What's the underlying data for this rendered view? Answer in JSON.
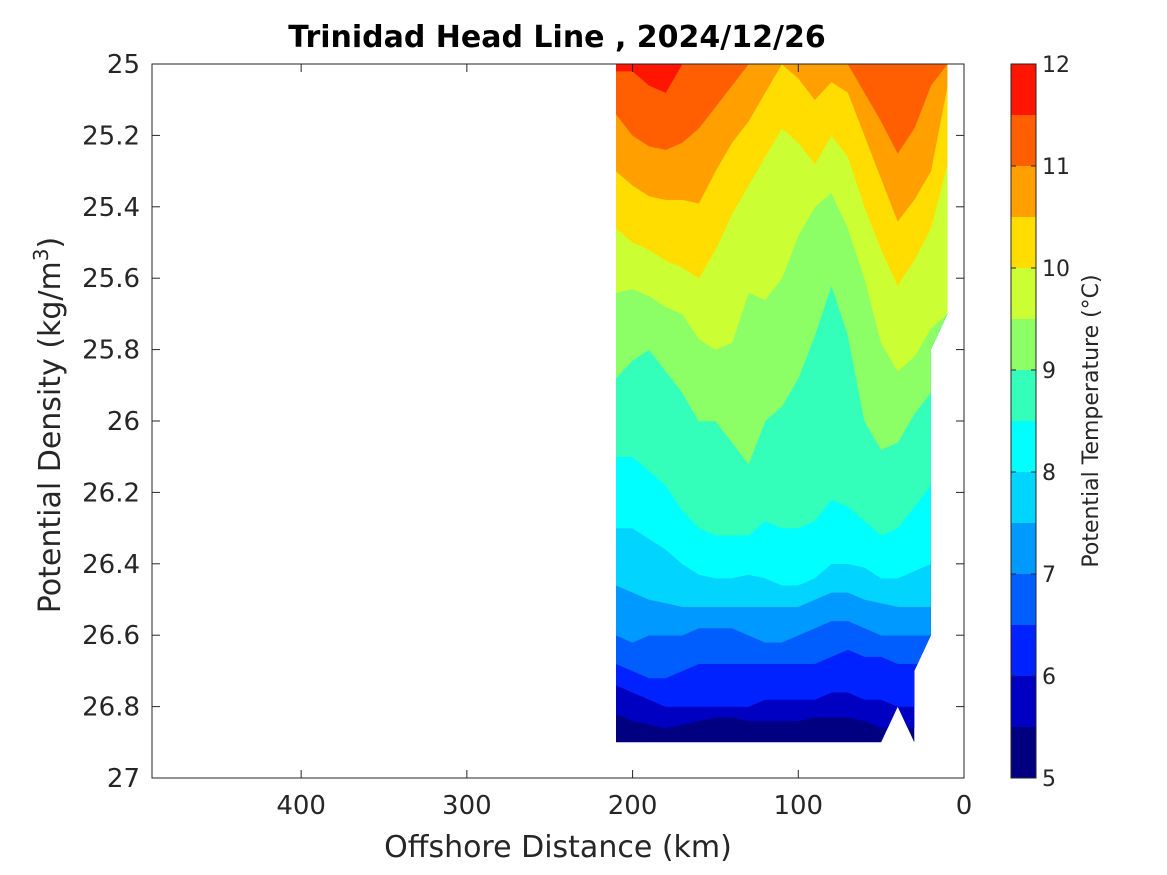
{
  "chart_data": {
    "type": "heatmap",
    "subtype": "filled-contour",
    "title": "Trinidad Head Line , 2024/12/26",
    "xlabel": "Offshore Distance (km)",
    "ylabel_main": "Potential Density (kg/m",
    "ylabel_sup": "3",
    "ylabel_close": ")",
    "colorbar_label": "Potential Temperature (°C)",
    "x_reversed": true,
    "y_reversed": true,
    "xlim": [
      0,
      490
    ],
    "ylim": [
      25,
      27
    ],
    "xticks": [
      400,
      300,
      200,
      100,
      0
    ],
    "xtick_labels": [
      "400",
      "300",
      "200",
      "100",
      "0"
    ],
    "yticks": [
      25,
      25.2,
      25.4,
      25.6,
      25.8,
      26,
      26.2,
      26.4,
      26.6,
      26.8,
      27
    ],
    "ytick_labels": [
      "25",
      "25.2",
      "25.4",
      "25.6",
      "25.8",
      "26",
      "26.2",
      "26.4",
      "26.6",
      "26.8",
      "27"
    ],
    "colorbar_range": [
      5,
      12
    ],
    "colorbar_ticks": [
      5,
      6,
      7,
      8,
      9,
      10,
      11,
      12
    ],
    "colorbar_tick_labels": [
      "5",
      "6",
      "7",
      "8",
      "9",
      "10",
      "11",
      "12"
    ],
    "levels": [
      5,
      5.5,
      6,
      6.5,
      7,
      7.5,
      8,
      8.5,
      9,
      9.5,
      10,
      10.5,
      11,
      11.5,
      12
    ],
    "level_colors": [
      "#000080",
      "#0000c3",
      "#0022ff",
      "#005eff",
      "#0099ff",
      "#00d4ff",
      "#00ffff",
      "#33ffbb",
      "#8cff66",
      "#ccff33",
      "#ffdd00",
      "#ff9f00",
      "#ff5f00",
      "#ff1500",
      "#c30000"
    ],
    "profile_stations_km": [
      210,
      200,
      190,
      180,
      170,
      160,
      150,
      140,
      130,
      120,
      110,
      100,
      90,
      80,
      70,
      60,
      50,
      40,
      30,
      20,
      10
    ],
    "band_boundaries": [
      {
        "level": 11.5,
        "sigma": [
          25.02,
          25.02,
          25.06,
          25.08,
          25.0,
          25.0,
          25.0,
          25.0,
          25.0,
          25.0,
          25.0,
          25.0,
          25.0,
          25.0,
          25.0,
          25.0,
          25.0,
          25.0,
          25.0,
          25.0,
          25.0
        ]
      },
      {
        "level": 11,
        "sigma": [
          25.14,
          25.2,
          25.23,
          25.24,
          25.22,
          25.18,
          25.12,
          25.06,
          25.0,
          25.0,
          25.0,
          25.0,
          25.0,
          25.0,
          25.0,
          25.08,
          25.16,
          25.25,
          25.18,
          25.06,
          25.0
        ]
      },
      {
        "level": 10.5,
        "sigma": [
          25.3,
          25.34,
          25.37,
          25.38,
          25.38,
          25.39,
          25.3,
          25.22,
          25.16,
          25.08,
          25.0,
          25.04,
          25.1,
          25.05,
          25.08,
          25.2,
          25.32,
          25.44,
          25.38,
          25.3,
          25.06
        ]
      },
      {
        "level": 10,
        "sigma": [
          25.46,
          25.5,
          25.52,
          25.55,
          25.57,
          25.6,
          25.52,
          25.42,
          25.34,
          25.26,
          25.18,
          25.22,
          25.28,
          25.2,
          25.26,
          25.4,
          25.52,
          25.62,
          25.55,
          25.46,
          25.28
        ]
      },
      {
        "level": 9.5,
        "sigma": [
          25.64,
          25.63,
          25.65,
          25.68,
          25.7,
          25.77,
          25.8,
          25.78,
          25.64,
          25.66,
          25.6,
          25.48,
          25.4,
          25.36,
          25.46,
          25.6,
          25.78,
          25.86,
          25.82,
          25.74,
          25.7
        ]
      },
      {
        "level": 9,
        "sigma": [
          25.88,
          25.83,
          25.8,
          25.86,
          25.92,
          26.0,
          26.0,
          26.06,
          26.12,
          26.0,
          25.96,
          25.88,
          25.76,
          25.62,
          25.76,
          26.0,
          26.08,
          26.06,
          25.98,
          25.92,
          25.92
        ]
      },
      {
        "level": 8.5,
        "sigma": [
          26.1,
          26.1,
          26.14,
          26.18,
          26.25,
          26.3,
          26.32,
          26.32,
          26.32,
          26.28,
          26.3,
          26.3,
          26.28,
          26.22,
          26.24,
          26.28,
          26.32,
          26.3,
          26.24,
          26.18,
          26.18
        ]
      },
      {
        "level": 8,
        "sigma": [
          26.3,
          26.3,
          26.33,
          26.36,
          26.4,
          26.43,
          26.44,
          26.44,
          26.43,
          26.44,
          26.46,
          26.46,
          26.44,
          26.4,
          26.4,
          26.41,
          26.44,
          26.44,
          26.42,
          26.4,
          26.4
        ]
      },
      {
        "level": 7.5,
        "sigma": [
          26.46,
          26.48,
          26.5,
          26.51,
          26.52,
          26.52,
          26.52,
          26.52,
          26.52,
          26.52,
          26.52,
          26.52,
          26.5,
          26.48,
          26.48,
          26.5,
          26.51,
          26.52,
          26.52,
          26.52,
          26.52
        ]
      },
      {
        "level": 7,
        "sigma": [
          26.6,
          26.62,
          26.6,
          26.6,
          26.6,
          26.58,
          26.58,
          26.58,
          26.6,
          26.62,
          26.62,
          26.6,
          26.58,
          26.56,
          26.56,
          26.58,
          26.6,
          26.6,
          26.6,
          26.6,
          26.6
        ]
      },
      {
        "level": 6.5,
        "sigma": [
          26.68,
          26.7,
          26.72,
          26.72,
          26.7,
          26.68,
          26.68,
          26.68,
          26.68,
          26.68,
          26.68,
          26.68,
          26.68,
          26.66,
          26.64,
          26.66,
          26.66,
          26.68,
          26.68,
          26.68,
          26.68
        ]
      },
      {
        "level": 6,
        "sigma": [
          26.74,
          26.76,
          26.78,
          26.8,
          26.8,
          26.8,
          26.8,
          26.8,
          26.8,
          26.78,
          26.78,
          26.78,
          26.78,
          26.76,
          26.76,
          26.78,
          26.78,
          26.8,
          26.8,
          26.8,
          26.8
        ]
      },
      {
        "level": 5.5,
        "sigma": [
          26.82,
          26.84,
          26.85,
          26.86,
          26.85,
          26.84,
          26.83,
          26.83,
          26.84,
          26.84,
          26.84,
          26.84,
          26.83,
          26.83,
          26.83,
          26.84,
          26.86,
          26.86,
          26.86,
          26.86,
          26.86
        ]
      }
    ],
    "data_bounds": [
      {
        "x": 210,
        "y": 25.0
      },
      {
        "x": 10,
        "y": 25.0
      },
      {
        "x": 10,
        "y": 25.7
      },
      {
        "x": 20,
        "y": 25.8
      },
      {
        "x": 20,
        "y": 26.6
      },
      {
        "x": 30,
        "y": 26.7
      },
      {
        "x": 30,
        "y": 26.9
      },
      {
        "x": 40,
        "y": 26.8
      },
      {
        "x": 50,
        "y": 26.9
      },
      {
        "x": 210,
        "y": 26.9
      }
    ],
    "grid": false,
    "colorbar_position": "right"
  }
}
